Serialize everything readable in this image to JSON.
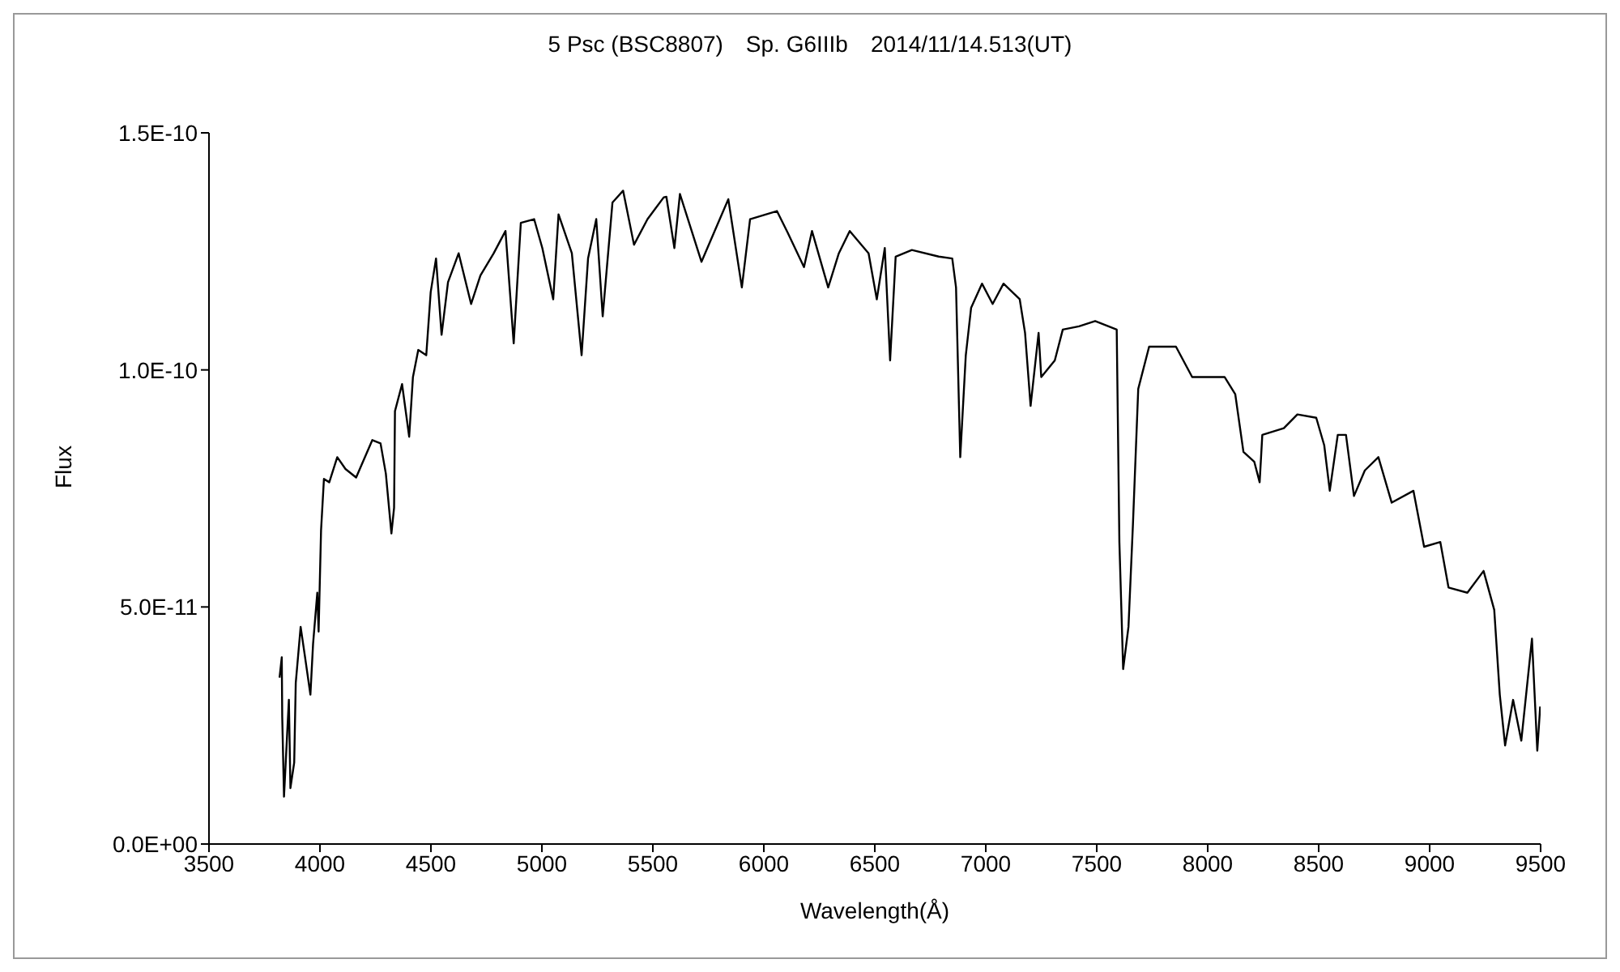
{
  "chart_data": {
    "type": "line",
    "title": "5 Psc (BSC8807)　Sp. G6IIIb　2014/11/14.513(UT)",
    "xlabel": "Wavelength(Å)",
    "ylabel": "Flux",
    "xlim": [
      3500,
      9500
    ],
    "xticks": [
      3500,
      4000,
      4500,
      5000,
      5500,
      6000,
      6500,
      7000,
      7500,
      8000,
      8500,
      9000,
      9500
    ],
    "ylim": [
      0,
      1.5e-10
    ],
    "yticks": [
      {
        "value": 0,
        "label": "0.0E+00"
      },
      {
        "value": 5e-11,
        "label": "5.0E-11"
      },
      {
        "value": 1e-10,
        "label": "1.0E-10"
      },
      {
        "value": 1.5e-10,
        "label": "1.5E-10"
      }
    ],
    "marker": "none",
    "line_style": "solid",
    "x": [
      3818,
      3828,
      3830,
      3838,
      3860,
      3867,
      3884,
      3891,
      3913,
      3932,
      3957,
      3969,
      3988,
      3994,
      4005,
      4018,
      4042,
      4078,
      4115,
      4163,
      4236,
      4273,
      4297,
      4322,
      4334,
      4338,
      4370,
      4402,
      4419,
      4443,
      4479,
      4499,
      4523,
      4548,
      4577,
      4625,
      4681,
      4723,
      4783,
      4836,
      4873,
      4905,
      4965,
      5002,
      5051,
      5075,
      5135,
      5179,
      5208,
      5245,
      5274,
      5318,
      5366,
      5415,
      5476,
      5549,
      5561,
      5597,
      5622,
      5719,
      5840,
      5901,
      5938,
      6059,
      6108,
      6181,
      6217,
      6290,
      6338,
      6387,
      6472,
      6509,
      6545,
      6569,
      6594,
      6667,
      6788,
      6849,
      6866,
      6885,
      6910,
      6934,
      6983,
      7031,
      7080,
      7153,
      7177,
      7202,
      7238,
      7250,
      7311,
      7347,
      7420,
      7493,
      7590,
      7602,
      7619,
      7643,
      7663,
      7687,
      7736,
      7857,
      7930,
      8076,
      8124,
      8161,
      8210,
      8234,
      8246,
      8343,
      8404,
      8489,
      8525,
      8550,
      8586,
      8623,
      8659,
      8708,
      8769,
      8829,
      8927,
      8975,
      9048,
      9085,
      9170,
      9243,
      9291,
      9316,
      9340,
      9376,
      9413,
      9461,
      9485,
      9498
    ],
    "series": [
      {
        "color": "#000000",
        "values": [
          3.51e-11,
          3.94e-11,
          2.69e-11,
          1e-11,
          3.04e-11,
          1.18e-11,
          1.72e-11,
          3.4e-11,
          4.58e-11,
          3.97e-11,
          3.15e-11,
          4.22e-11,
          5.3e-11,
          4.48e-11,
          6.62e-11,
          7.7e-11,
          7.63e-11,
          8.16e-11,
          7.91e-11,
          7.73e-11,
          8.52e-11,
          8.45e-11,
          7.81e-11,
          6.55e-11,
          7.09e-11,
          9.13e-11,
          9.7e-11,
          8.59e-11,
          9.85e-11,
          1.042e-10,
          1.031e-10,
          1.164e-10,
          1.235e-10,
          1.074e-10,
          1.185e-10,
          1.246e-10,
          1.139e-10,
          1.199e-10,
          1.246e-10,
          1.293e-10,
          1.056e-10,
          1.31e-10,
          1.318e-10,
          1.257e-10,
          1.149e-10,
          1.328e-10,
          1.246e-10,
          1.031e-10,
          1.235e-10,
          1.318e-10,
          1.113e-10,
          1.353e-10,
          1.378e-10,
          1.264e-10,
          1.318e-10,
          1.364e-10,
          1.365e-10,
          1.257e-10,
          1.371e-10,
          1.228e-10,
          1.36e-10,
          1.174e-10,
          1.318e-10,
          1.335e-10,
          1.289e-10,
          1.217e-10,
          1.293e-10,
          1.174e-10,
          1.246e-10,
          1.293e-10,
          1.246e-10,
          1.149e-10,
          1.257e-10,
          1.02e-10,
          1.239e-10,
          1.253e-10,
          1.239e-10,
          1.235e-10,
          1.174e-10,
          8.16e-11,
          1.031e-10,
          1.131e-10,
          1.182e-10,
          1.139e-10,
          1.182e-10,
          1.149e-10,
          1.078e-10,
          9.24e-11,
          1.078e-10,
          9.85e-11,
          1.02e-10,
          1.085e-10,
          1.092e-10,
          1.103e-10,
          1.085e-10,
          6.37e-11,
          3.69e-11,
          4.58e-11,
          6.73e-11,
          9.6e-11,
          1.049e-10,
          1.049e-10,
          9.85e-11,
          9.85e-11,
          9.49e-11,
          8.27e-11,
          8.06e-11,
          7.63e-11,
          8.63e-11,
          8.77e-11,
          9.06e-11,
          8.99e-11,
          8.41e-11,
          7.45e-11,
          8.63e-11,
          8.63e-11,
          7.34e-11,
          7.88e-11,
          8.16e-11,
          7.2e-11,
          7.45e-11,
          6.27e-11,
          6.37e-11,
          5.41e-11,
          5.3e-11,
          5.76e-11,
          4.94e-11,
          3.15e-11,
          2.08e-11,
          3.04e-11,
          2.18e-11,
          4.33e-11,
          1.97e-11,
          2.9e-11
        ]
      }
    ]
  }
}
